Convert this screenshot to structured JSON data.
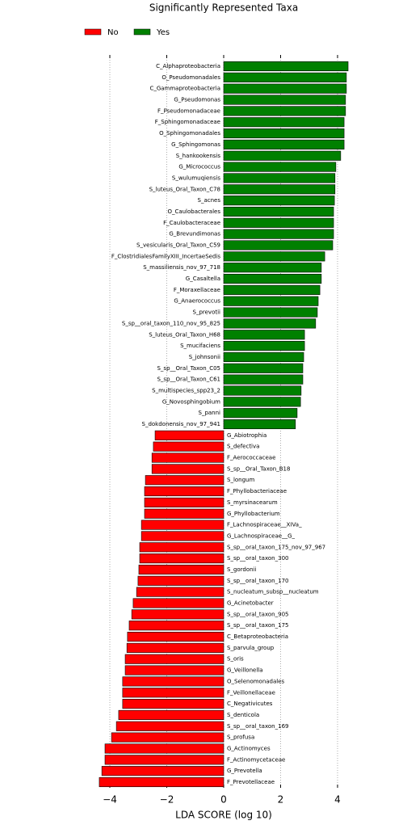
{
  "chart_data": {
    "type": "bar",
    "orientation": "horizontal",
    "title": "Significantly Represented Taxa",
    "x_label": "LDA SCORE (log 10)",
    "xlim": [
      -4.6,
      4.6
    ],
    "xticks": [
      {
        "value": -4,
        "label": "−4"
      },
      {
        "value": -2,
        "label": "−2"
      },
      0,
      2,
      4
    ],
    "grid": true,
    "series": [
      {
        "name": "No",
        "color": "#ff0000",
        "categories": [
          "G_Abiotrophia",
          "S_defectiva",
          "F_Aerococcaceae",
          "S_sp__Oral_Taxon_B18",
          "S_longum",
          "F_Phyllobacteriaceae",
          "S_myrsinacearum",
          "G_Phyllobacterium",
          "F_Lachnospiraceae__XIVa_",
          "G_Lachnospiraceae__G_",
          "S_sp__oral_taxon_175_nov_97_967",
          "S_sp__oral_taxon_300",
          "S_gordonii",
          "S_sp__oral_taxon_170",
          "S_nucleatum_subsp__nucleatum",
          "G_Acinetobacter",
          "S_sp__oral_taxon_905",
          "S_sp__oral_taxon_175",
          "C_Betaproteobacteria",
          "S_parvula_group",
          "S_oris",
          "G_Veillonella",
          "O_Selenomonadales",
          "F_Veillonellaceae",
          "C_Negativicutes",
          "S_denticola",
          "S_sp__oral_taxon_169",
          "S_profusa",
          "G_Actinomyces",
          "F_Actinomycetaceae",
          "G_Prevotella",
          "F_Prevotellaceae"
        ],
        "values": [
          -2.41,
          -2.47,
          -2.52,
          -2.52,
          -2.75,
          -2.78,
          -2.78,
          -2.78,
          -2.89,
          -2.89,
          -2.95,
          -2.95,
          -2.98,
          -3.01,
          -3.06,
          -3.18,
          -3.23,
          -3.32,
          -3.38,
          -3.4,
          -3.46,
          -3.46,
          -3.55,
          -3.55,
          -3.55,
          -3.69,
          -3.77,
          -3.94,
          -4.17,
          -4.17,
          -4.28,
          -4.37
        ]
      },
      {
        "name": "Yes",
        "color": "#008000",
        "categories": [
          "C_Alphaproteobacteria",
          "O_Pseudomonadales",
          "C_Gammaproteobacteria",
          "G_Pseudomonas",
          "F_Pseudomonadaceae",
          "F_Sphingomonadaceae",
          "O_Sphingomonadales",
          "G_Sphingomonas",
          "S_hankookensis",
          "G_Micrococcus",
          "S_wulumuqiensis",
          "S_luteus_Oral_Taxon_C78",
          "S_acnes",
          "O_Caulobacterales",
          "F_Caulobacteraceae",
          "G_Brevundimonas",
          "S_vesicularis_Oral_Taxon_C59",
          "F_ClostridialesFamilyXIII_IncertaeSedis",
          "S_massiliensis_nov_97_718",
          "G_Casaltella",
          "F_Moraxellaceae",
          "G_Anaerococcus",
          "S_prevotii",
          "S_sp__oral_taxon_110_nov_95_825",
          "S_luteus_Oral_Taxon_H68",
          "S_mucifaciens",
          "S_johnsonii",
          "S_sp__Oral_Taxon_C05",
          "S_sp__Oral_Taxon_C61",
          "S_multispecies_spp23_2",
          "G_Novosphingobium",
          "S_panni",
          "S_dokdonensis_nov_97_941"
        ],
        "values": [
          4.37,
          4.31,
          4.31,
          4.28,
          4.28,
          4.23,
          4.23,
          4.23,
          4.11,
          3.94,
          3.91,
          3.91,
          3.89,
          3.86,
          3.86,
          3.86,
          3.83,
          3.55,
          3.43,
          3.43,
          3.38,
          3.32,
          3.29,
          3.23,
          2.84,
          2.84,
          2.81,
          2.78,
          2.78,
          2.72,
          2.7,
          2.58,
          2.52
        ]
      }
    ]
  }
}
